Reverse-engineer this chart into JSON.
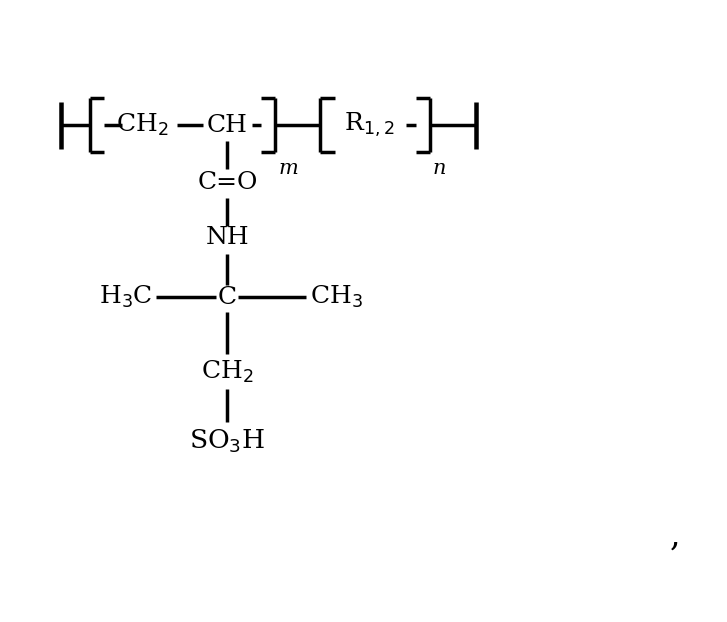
{
  "bg_color": "#ffffff",
  "line_color": "#000000",
  "font_size_main": 18,
  "font_size_sub": 14,
  "font_size_mn": 15,
  "line_width": 2.5,
  "figsize": [
    7.27,
    6.22
  ],
  "dpi": 100,
  "labels": {
    "CH2_top": "CH$_2$",
    "CH_top": "CH",
    "R12": "R$_{1,2}$",
    "m_sub": "m",
    "n_sub": "n",
    "C_eq_O": "C=O",
    "NH": "NH",
    "C_center": "C",
    "H3C_left": "H$_3$C",
    "CH3_right": "CH$_3$",
    "CH2_mid": "CH$_2$",
    "SO3H": "SO$_3$H"
  },
  "comma_text": ",",
  "chain_y": 8.0,
  "xlim": [
    0,
    10
  ],
  "ylim": [
    0,
    10
  ]
}
